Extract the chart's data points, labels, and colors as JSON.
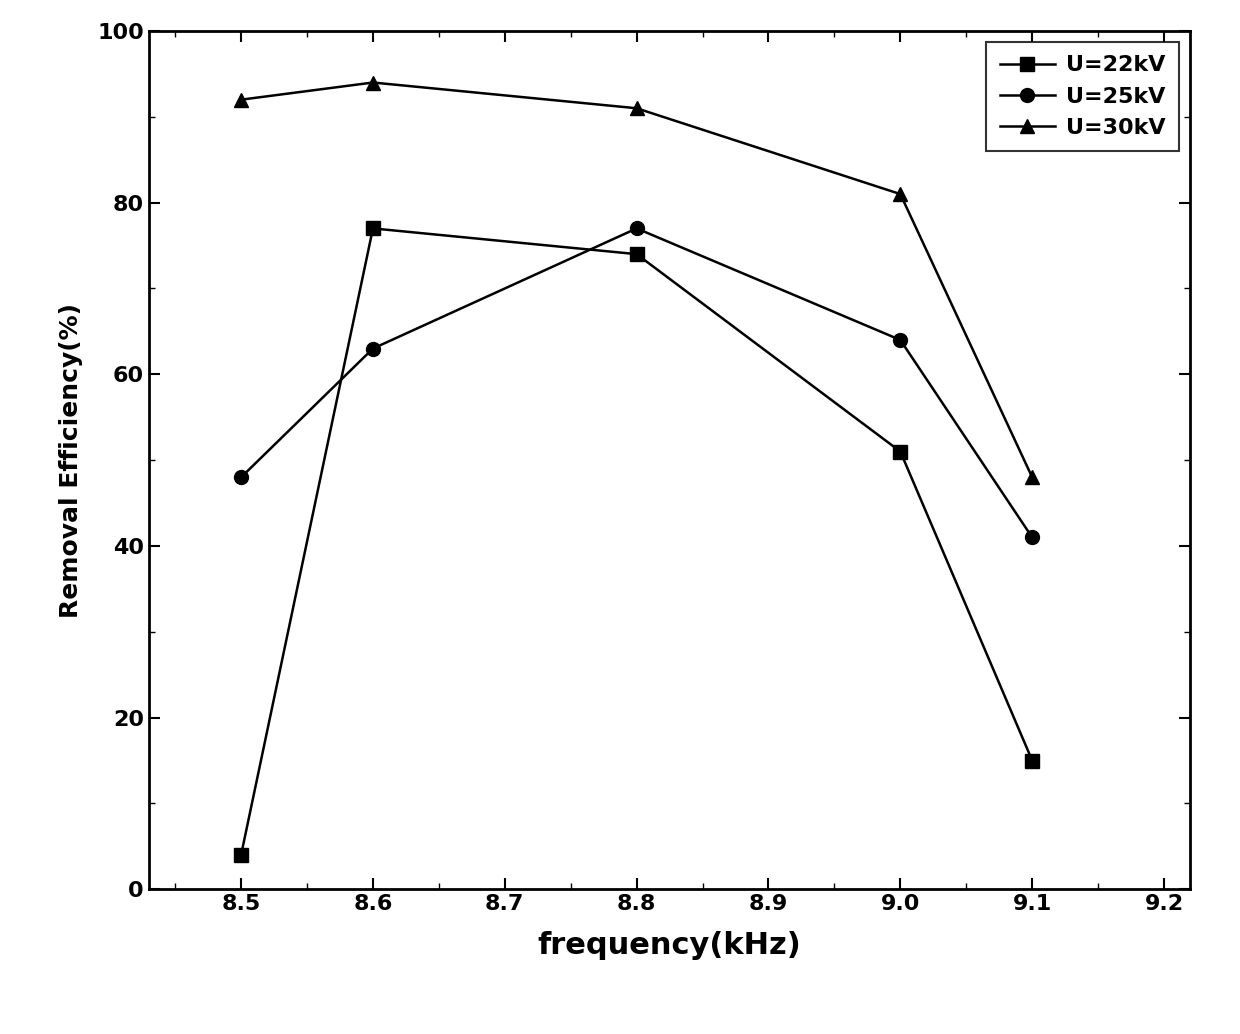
{
  "series": [
    {
      "label": "U=22kV",
      "x": [
        8.5,
        8.6,
        8.8,
        9.0,
        9.1
      ],
      "y": [
        4,
        77,
        74,
        51,
        15
      ],
      "marker": "s",
      "color": "#000000",
      "markersize": 10
    },
    {
      "label": "U=25kV",
      "x": [
        8.5,
        8.6,
        8.8,
        9.0,
        9.1
      ],
      "y": [
        48,
        63,
        77,
        64,
        41
      ],
      "marker": "o",
      "color": "#000000",
      "markersize": 10
    },
    {
      "label": "U=30kV",
      "x": [
        8.5,
        8.6,
        8.8,
        9.0,
        9.1
      ],
      "y": [
        92,
        94,
        91,
        81,
        48
      ],
      "marker": "^",
      "color": "#000000",
      "markersize": 10
    }
  ],
  "xlabel": "frequency(kHz)",
  "ylabel": "Removal Efficiency(%)",
  "xlim": [
    8.43,
    9.22
  ],
  "ylim": [
    0,
    100
  ],
  "xticks": [
    8.5,
    8.6,
    8.7,
    8.8,
    8.9,
    9.0,
    9.1,
    9.2
  ],
  "yticks": [
    0,
    20,
    40,
    60,
    80,
    100
  ],
  "xlabel_fontsize": 22,
  "ylabel_fontsize": 18,
  "tick_fontsize": 16,
  "legend_fontsize": 16,
  "linewidth": 1.8,
  "background_color": "#ffffff"
}
